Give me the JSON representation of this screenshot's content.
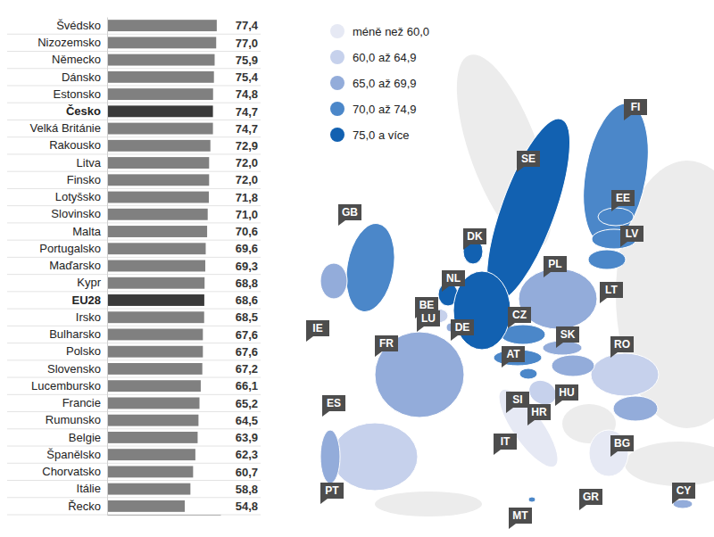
{
  "chart_data": [
    {
      "type": "bar",
      "orientation": "horizontal",
      "categories": [
        "Švédsko",
        "Nizozemsko",
        "Německo",
        "Dánsko",
        "Estonsko",
        "Česko",
        "Velká Británie",
        "Rakousko",
        "Litva",
        "Finsko",
        "Lotyšsko",
        "Slovinsko",
        "Malta",
        "Portugalsko",
        "Maďarsko",
        "Kypr",
        "EU28",
        "Irsko",
        "Bulharsko",
        "Polsko",
        "Slovensko",
        "Lucembursko",
        "Francie",
        "Rumunsko",
        "Belgie",
        "Španělsko",
        "Chorvatsko",
        "Itálie",
        "Řecko"
      ],
      "values": [
        77.4,
        77.0,
        75.9,
        75.4,
        74.8,
        74.7,
        74.7,
        72.9,
        72.0,
        72.0,
        71.8,
        71.0,
        70.6,
        69.6,
        69.3,
        68.8,
        68.6,
        68.5,
        67.6,
        67.6,
        67.2,
        66.1,
        65.2,
        64.5,
        63.9,
        62.3,
        60.7,
        58.8,
        54.8
      ],
      "value_labels": [
        "77,4",
        "77,0",
        "75,9",
        "75,4",
        "74,8",
        "74,7",
        "74,7",
        "72,9",
        "72,0",
        "72,0",
        "71,8",
        "71,0",
        "70,6",
        "69,6",
        "69,3",
        "68,8",
        "68,6",
        "68,5",
        "67,6",
        "67,6",
        "67,2",
        "66,1",
        "65,2",
        "64,5",
        "63,9",
        "62,3",
        "60,7",
        "58,8",
        "54,8"
      ],
      "colors": [
        "#808080",
        "#808080",
        "#808080",
        "#808080",
        "#808080",
        "#3a3a3a",
        "#808080",
        "#808080",
        "#808080",
        "#808080",
        "#808080",
        "#808080",
        "#808080",
        "#808080",
        "#808080",
        "#808080",
        "#3a3a3a",
        "#808080",
        "#808080",
        "#808080",
        "#808080",
        "#808080",
        "#808080",
        "#808080",
        "#808080",
        "#808080",
        "#808080",
        "#808080",
        "#808080"
      ],
      "ylim": [
        0,
        80
      ],
      "yticks": [],
      "data_labels": true,
      "tick_labels": "x"
    },
    {
      "type": "choropleth",
      "legend": {
        "labels": [
          "méně než 60,0",
          "60,0 až 64,9",
          "65,0 až 69,9",
          "70,0 až 74,9",
          "75,0 a více"
        ],
        "colors": [
          "#e6e9f4",
          "#c6d1ec",
          "#93acda",
          "#4b87c9",
          "#1261b1"
        ],
        "thresholds": [
          60,
          65,
          70,
          75
        ]
      },
      "regions": [
        {
          "code": "FI",
          "value": 72.0
        },
        {
          "code": "SE",
          "value": 77.4
        },
        {
          "code": "EE",
          "value": 74.8
        },
        {
          "code": "LV",
          "value": 71.8
        },
        {
          "code": "LT",
          "value": 72.0
        },
        {
          "code": "GB",
          "value": 74.7
        },
        {
          "code": "DK",
          "value": 75.4
        },
        {
          "code": "PL",
          "value": 67.6
        },
        {
          "code": "NL",
          "value": 77.0
        },
        {
          "code": "BE",
          "value": 63.9
        },
        {
          "code": "LU",
          "value": 66.1
        },
        {
          "code": "CZ",
          "value": 74.7
        },
        {
          "code": "DE",
          "value": 75.9
        },
        {
          "code": "IE",
          "value": 68.5
        },
        {
          "code": "SK",
          "value": 67.2
        },
        {
          "code": "AT",
          "value": 72.9
        },
        {
          "code": "RO",
          "value": 64.5
        },
        {
          "code": "FR",
          "value": 65.2
        },
        {
          "code": "HU",
          "value": 69.3
        },
        {
          "code": "SI",
          "value": 71.0
        },
        {
          "code": "ES",
          "value": 62.3
        },
        {
          "code": "HR",
          "value": 60.7
        },
        {
          "code": "IT",
          "value": 58.8
        },
        {
          "code": "BG",
          "value": 67.6
        },
        {
          "code": "PT",
          "value": 69.6
        },
        {
          "code": "GR",
          "value": 54.8
        },
        {
          "code": "MT",
          "value": 70.6
        },
        {
          "code": "CY",
          "value": 68.8
        }
      ]
    }
  ]
}
